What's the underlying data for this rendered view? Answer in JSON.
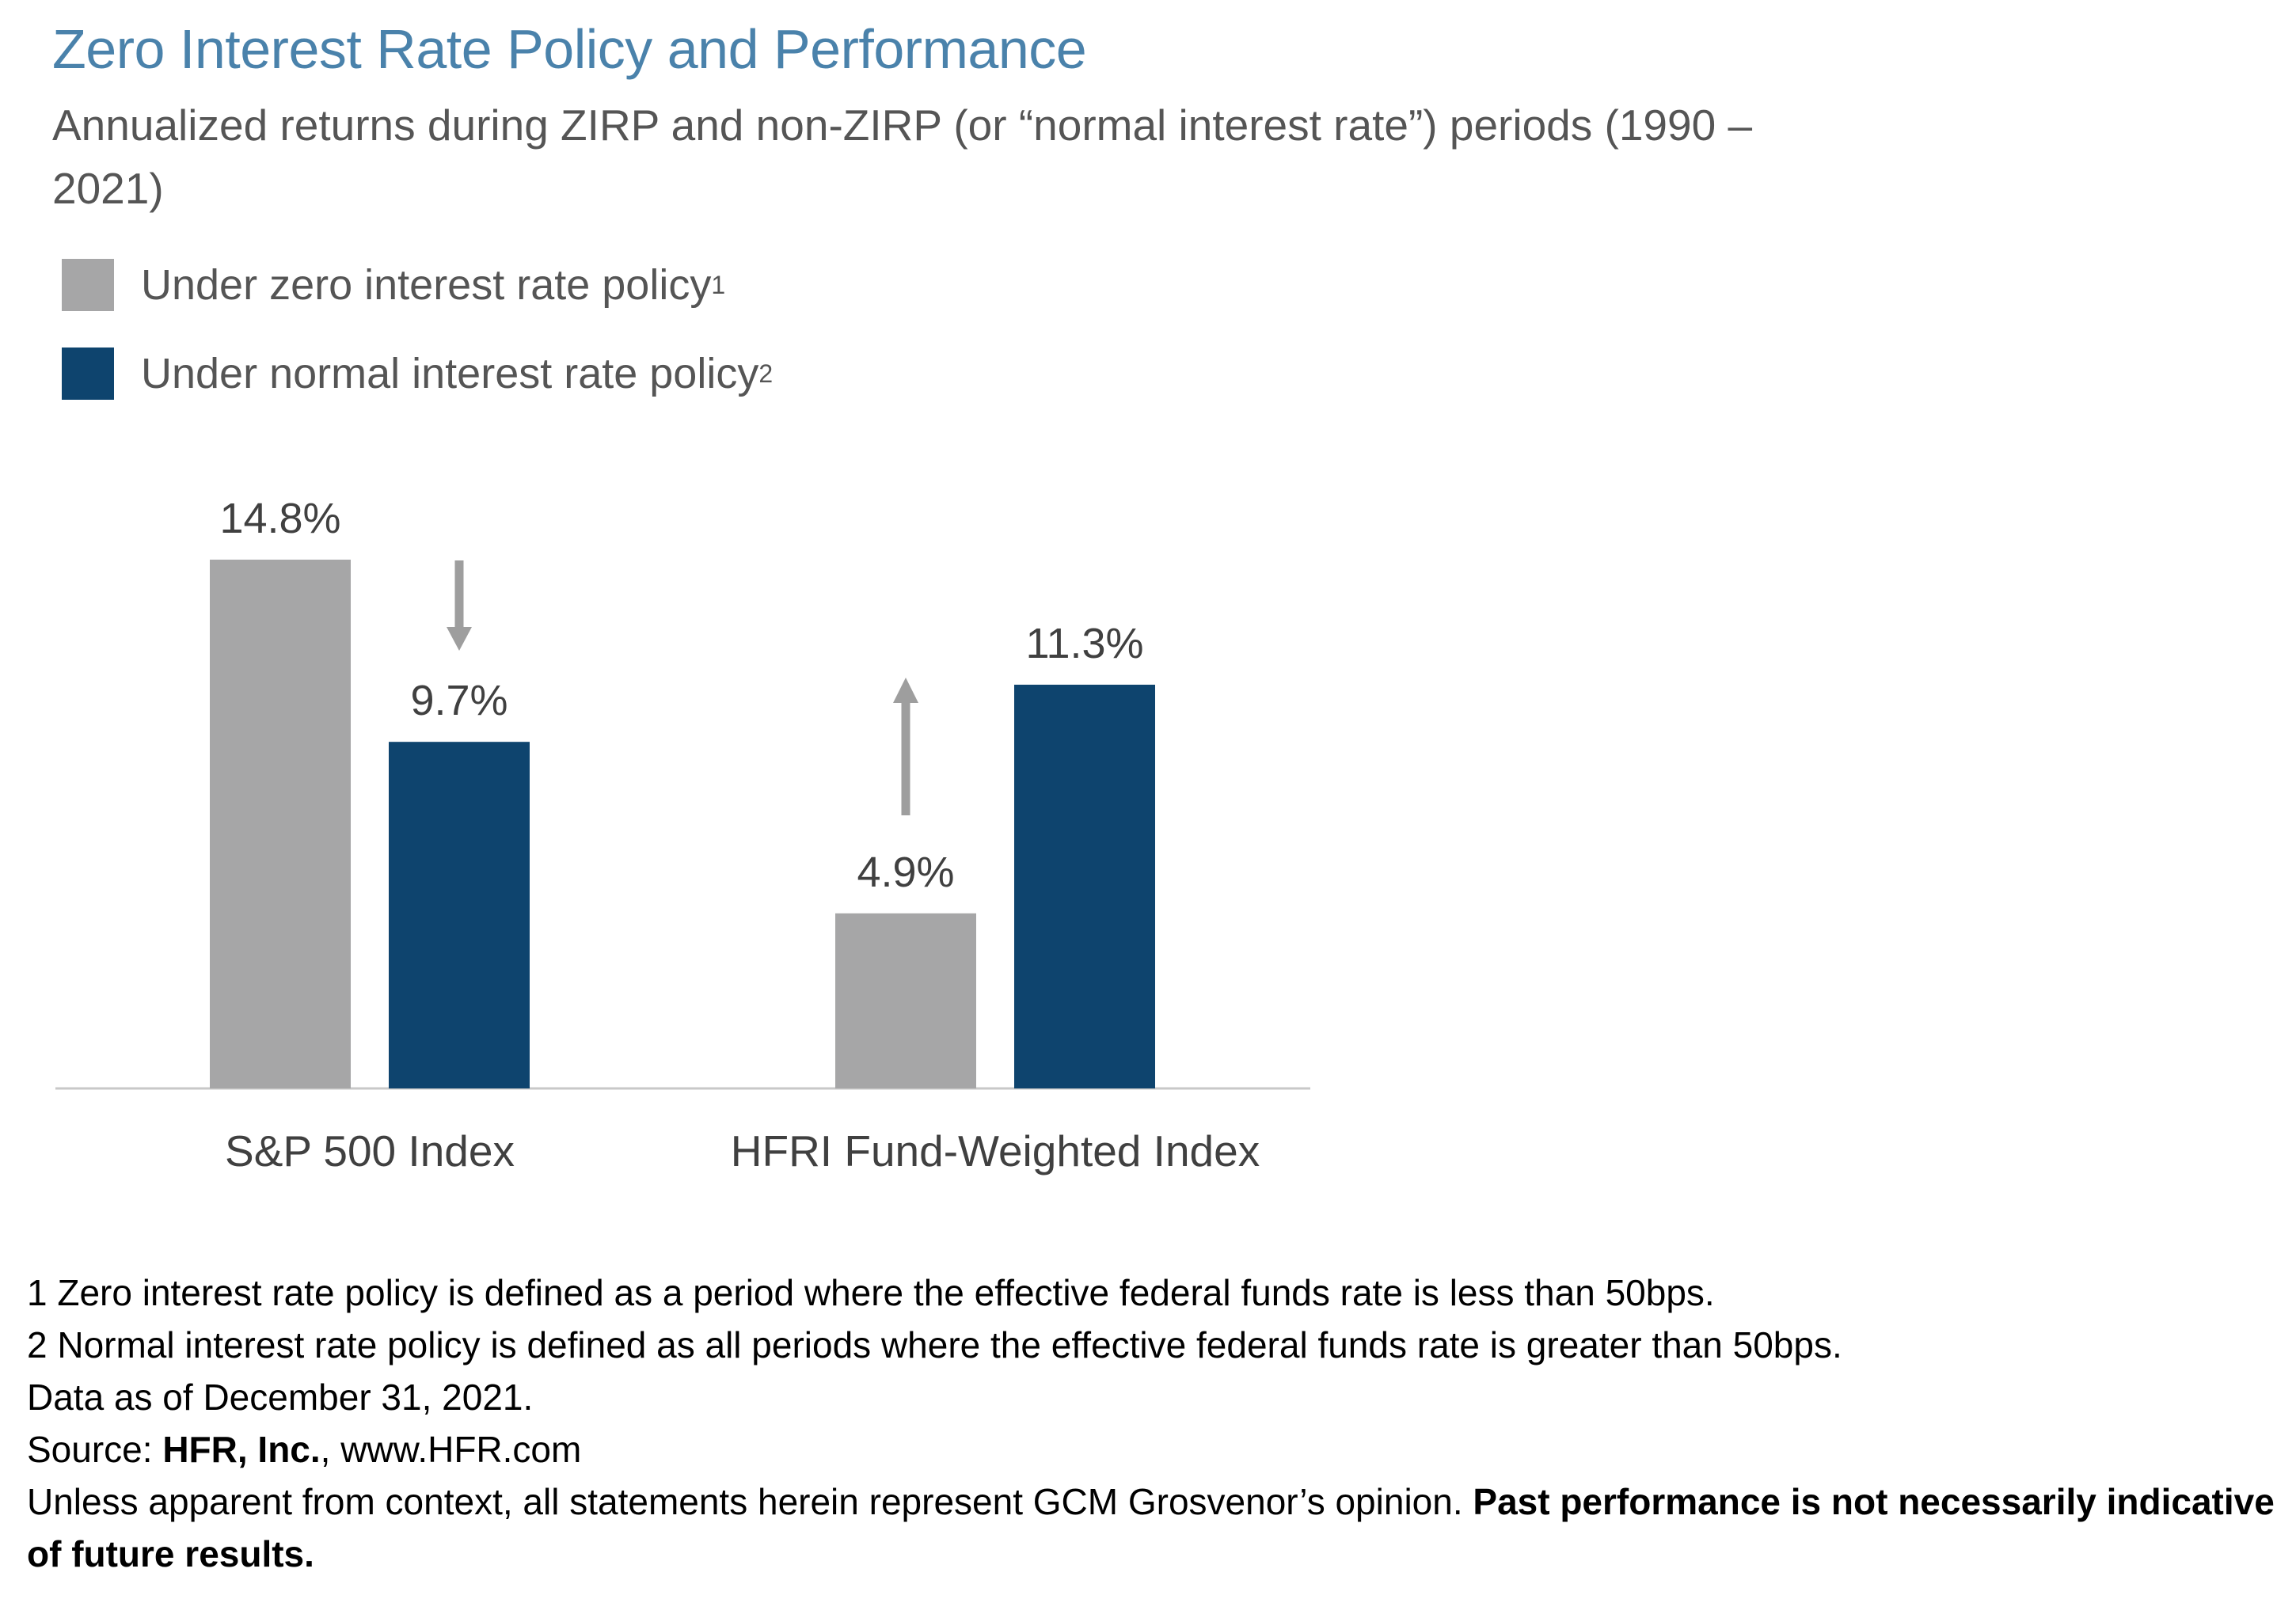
{
  "title": "Zero Interest Rate Policy and Performance",
  "subtitle": "Annualized returns during ZIRP and non-ZIRP (or “normal interest rate”) periods (1990 – 2021)",
  "legend": [
    {
      "label": "Under zero interest rate policy",
      "sup": "1",
      "color": "#a6a6a7"
    },
    {
      "label": "Under normal interest rate policy",
      "sup": "2",
      "color": "#0e446e"
    }
  ],
  "chart_data": {
    "type": "bar",
    "title": "Zero Interest Rate Policy and Performance",
    "categories": [
      "S&P 500 Index",
      "HFRI Fund-Weighted Index"
    ],
    "series": [
      {
        "name": "Under zero interest rate policy",
        "values": [
          14.8,
          4.9
        ],
        "labels": [
          "14.8%",
          "4.9%"
        ],
        "color": "#a6a6a7"
      },
      {
        "name": "Under normal interest rate policy",
        "values": [
          9.7,
          11.3
        ],
        "labels": [
          "9.7%",
          "11.3%"
        ],
        "color": "#0e446e"
      }
    ],
    "arrows": [
      {
        "category": "S&P 500 Index",
        "direction": "down"
      },
      {
        "category": "HFRI Fund-Weighted Index",
        "direction": "up"
      }
    ],
    "ylim": [
      0,
      15
    ],
    "xlabel": "",
    "ylabel": "",
    "grid": false,
    "legend_position": "top-left",
    "axis_color": "#c8c8c8",
    "arrow_color": "#9e9e9e"
  },
  "footnotes": {
    "note1": "1  Zero interest rate policy is defined as a period where the effective federal funds rate is less than 50bps.",
    "note2": "2  Normal interest rate policy is defined as all periods where the effective federal funds rate is greater than 50bps.",
    "data_as_of": "Data as of December 31, 2021.",
    "source_prefix": "Source: ",
    "source_bold": "HFR, Inc.",
    "source_suffix": ", www.HFR.com",
    "disclaimer": "Unless apparent from context, all statements herein represent GCM Grosvenor’s opinion. ",
    "disclaimer_bold": "Past performance is not necessarily indicative of future results."
  }
}
